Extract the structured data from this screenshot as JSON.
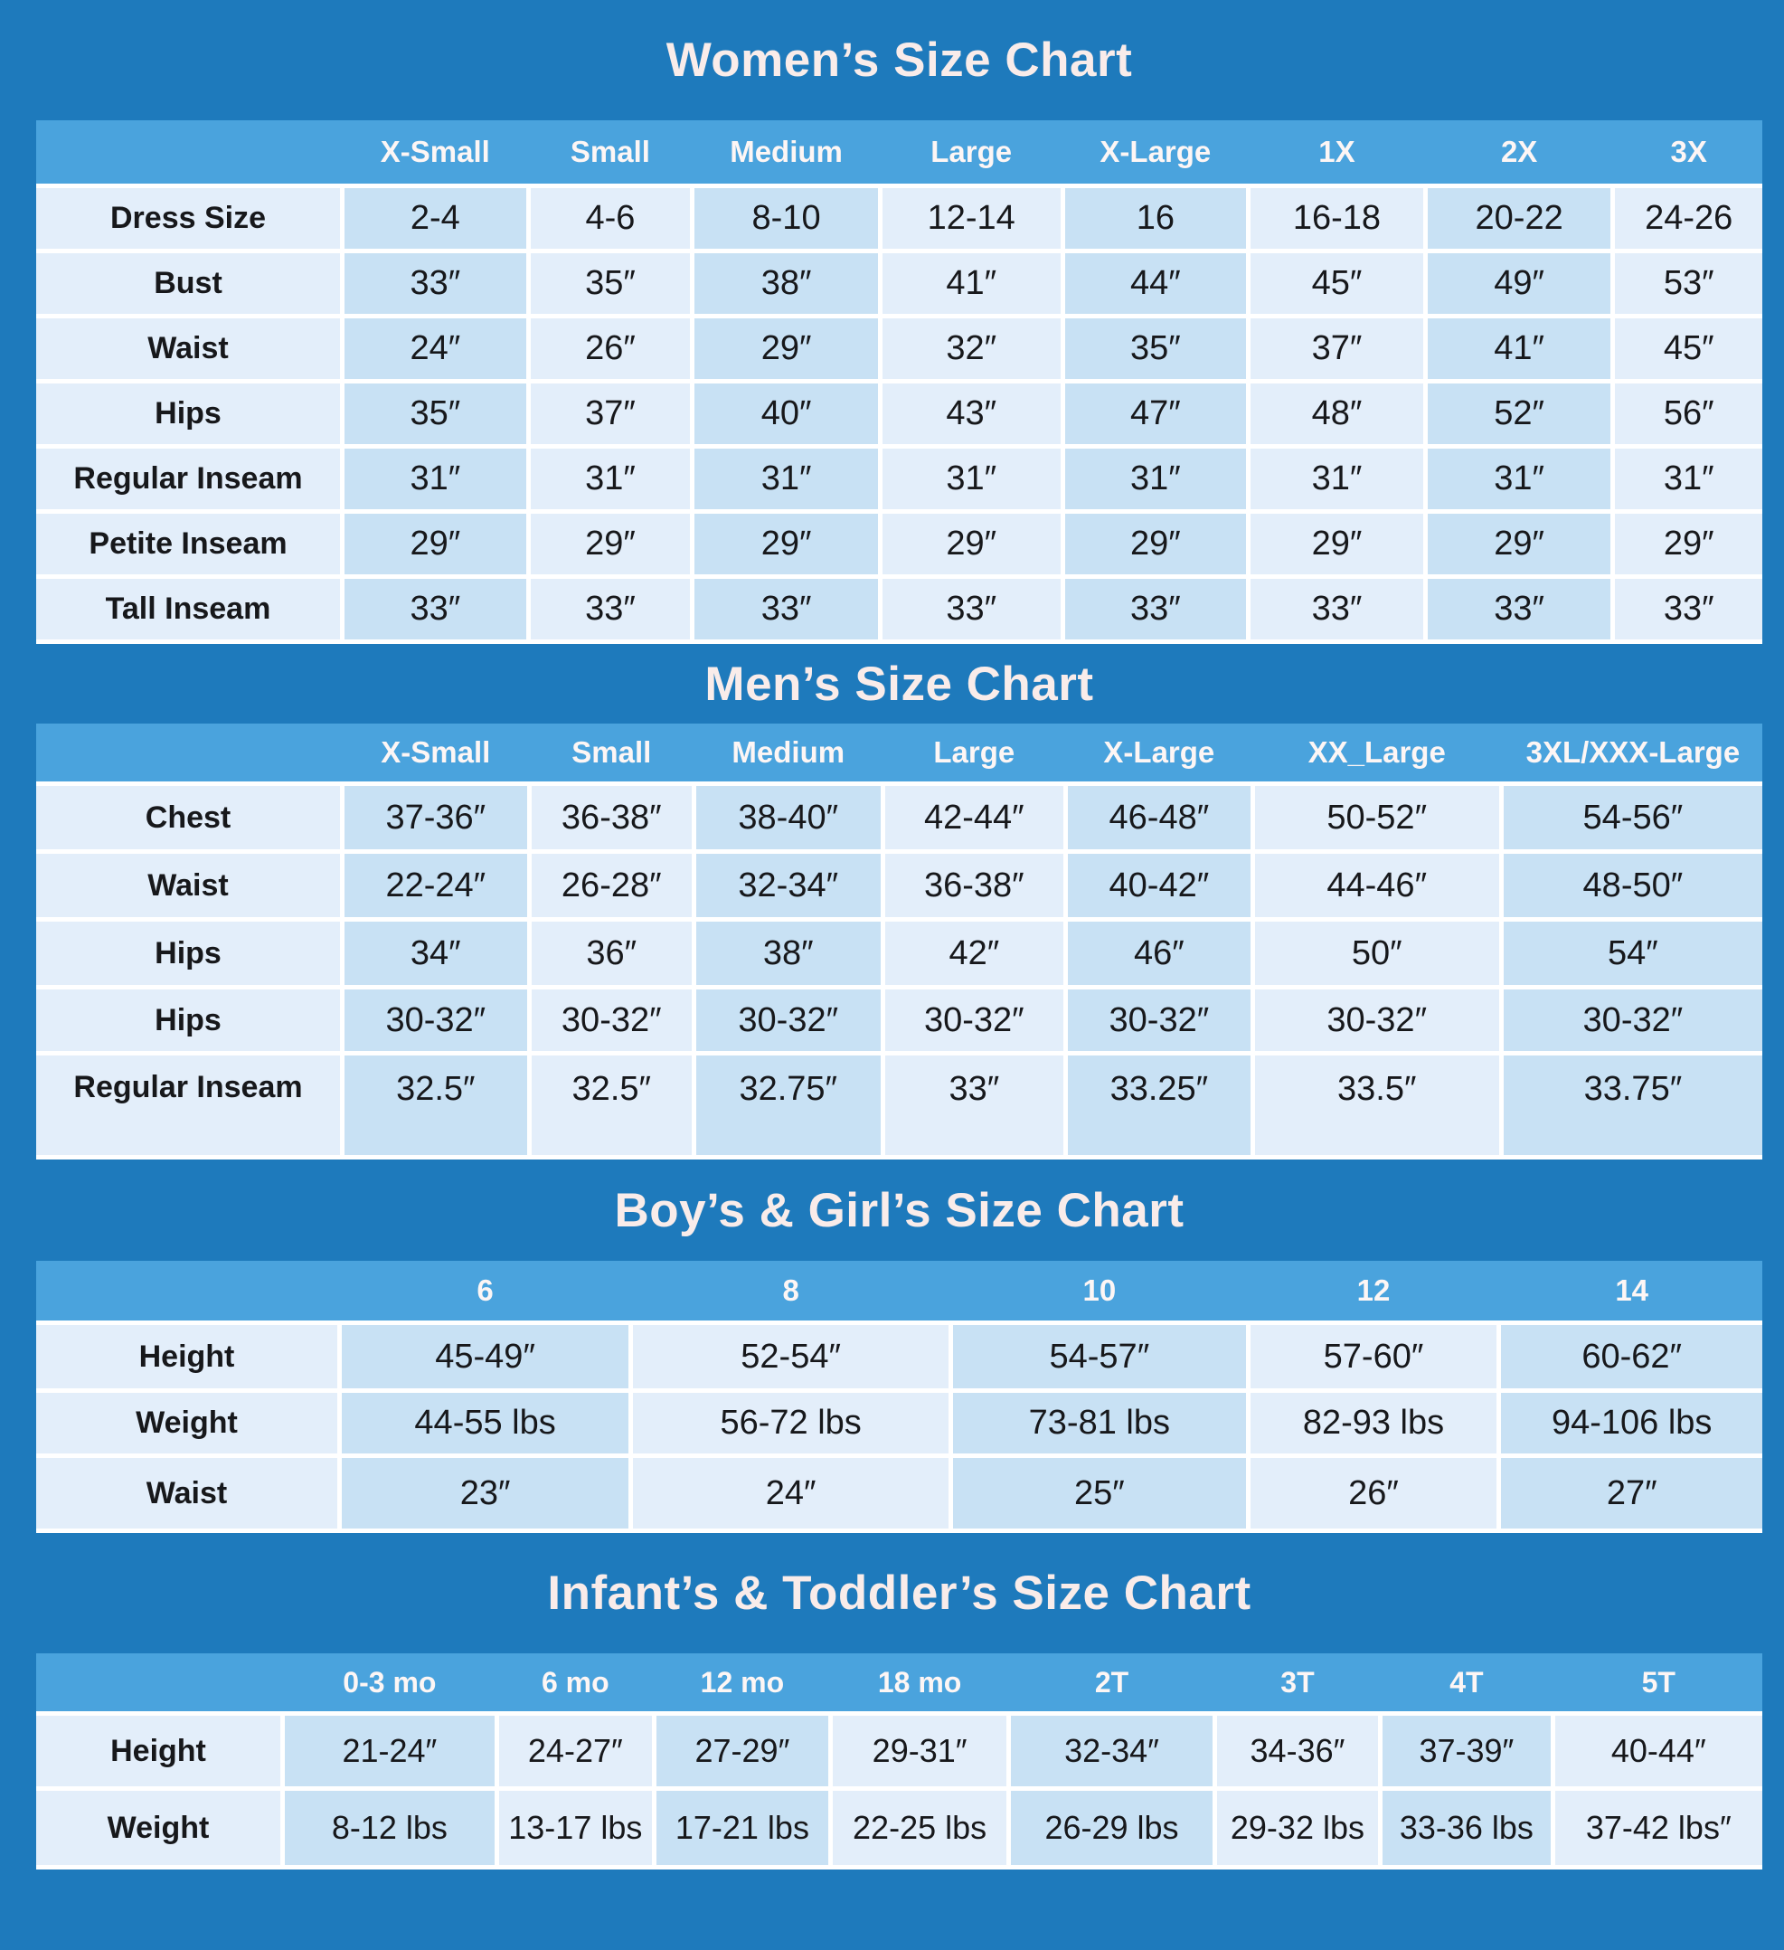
{
  "colors": {
    "background": "#1e7abc",
    "header_band": "#4aa3dd",
    "cell_light": "#e3eefa",
    "cell_dark": "#c8e1f4",
    "separator": "#ffffff",
    "title_text": "#f9ecea",
    "band_text": "#fdf6f5",
    "cell_text": "#17181b"
  },
  "chart_data": [
    {
      "type": "table",
      "title": "Women’s Size Chart",
      "columns": [
        "X-Small",
        "Small",
        "Medium",
        "Large",
        "X-Large",
        "1X",
        "2X",
        "3X"
      ],
      "rows": [
        {
          "label": "Dress Size",
          "values": [
            "2-4",
            "4-6",
            "8-10",
            "12-14",
            "16",
            "16-18",
            "20-22",
            "24-26"
          ]
        },
        {
          "label": "Bust",
          "values": [
            "33″",
            "35″",
            "38″",
            "41″",
            "44″",
            "45″",
            "49″",
            "53″"
          ]
        },
        {
          "label": "Waist",
          "values": [
            "24″",
            "26″",
            "29″",
            "32″",
            "35″",
            "37″",
            "41″",
            "45″"
          ]
        },
        {
          "label": "Hips",
          "values": [
            "35″",
            "37″",
            "40″",
            "43″",
            "47″",
            "48″",
            "52″",
            "56″"
          ]
        },
        {
          "label": "Regular Inseam",
          "values": [
            "31″",
            "31″",
            "31″",
            "31″",
            "31″",
            "31″",
            "31″",
            "31″"
          ]
        },
        {
          "label": "Petite Inseam",
          "values": [
            "29″",
            "29″",
            "29″",
            "29″",
            "29″",
            "29″",
            "29″",
            "29″"
          ]
        },
        {
          "label": "Tall Inseam",
          "values": [
            "33″",
            "33″",
            "33″",
            "33″",
            "33″",
            "33″",
            "33″",
            "33″"
          ]
        }
      ]
    },
    {
      "type": "table",
      "title": "Men’s Size Chart",
      "columns": [
        "X-Small",
        "Small",
        "Medium",
        "Large",
        "X-Large",
        "XX_Large",
        "3XL/XXX-Large"
      ],
      "rows": [
        {
          "label": "Chest",
          "values": [
            "37-36″",
            "36-38″",
            "38-40″",
            "42-44″",
            "46-48″",
            "50-52″",
            "54-56″"
          ]
        },
        {
          "label": "Waist",
          "values": [
            "22-24″",
            "26-28″",
            "32-34″",
            "36-38″",
            "40-42″",
            "44-46″",
            "48-50″"
          ]
        },
        {
          "label": "Hips",
          "values": [
            "34″",
            "36″",
            "38″",
            "42″",
            "46″",
            "50″",
            "54″"
          ]
        },
        {
          "label": "Hips",
          "values": [
            "30-32″",
            "30-32″",
            "30-32″",
            "30-32″",
            "30-32″",
            "30-32″",
            "30-32″"
          ]
        },
        {
          "label": "Regular Inseam",
          "values": [
            "32.5″",
            "32.5″",
            "32.75″",
            "33″",
            "33.25″",
            "33.5″",
            "33.75″"
          ]
        }
      ]
    },
    {
      "type": "table",
      "title": "Boy’s & Girl’s Size Chart",
      "columns": [
        "6",
        "8",
        "10",
        "12",
        "14"
      ],
      "rows": [
        {
          "label": "Height",
          "values": [
            "45-49″",
            "52-54″",
            "54-57″",
            "57-60″",
            "60-62″"
          ]
        },
        {
          "label": "Weight",
          "values": [
            "44-55 lbs",
            "56-72 lbs",
            "73-81 lbs",
            "82-93 lbs",
            "94-106 lbs"
          ]
        },
        {
          "label": "Waist",
          "values": [
            "23″",
            "24″",
            "25″",
            "26″",
            "27″"
          ]
        }
      ]
    },
    {
      "type": "table",
      "title": "Infant’s & Toddler’s Size Chart",
      "columns": [
        "0-3 mo",
        "6 mo",
        "12 mo",
        "18 mo",
        "2T",
        "3T",
        "4T",
        "5T"
      ],
      "rows": [
        {
          "label": "Height",
          "values": [
            "21-24″",
            "24-27″",
            "27-29″",
            "29-31″",
            "32-34″",
            "34-36″",
            "37-39″",
            "40-44″"
          ]
        },
        {
          "label": "Weight",
          "values": [
            "8-12 lbs",
            "13-17 lbs",
            "17-21 lbs",
            "22-25 lbs",
            "26-29 lbs",
            "29-32 lbs",
            "33-36 lbs",
            "37-42 lbs″"
          ]
        }
      ]
    }
  ]
}
